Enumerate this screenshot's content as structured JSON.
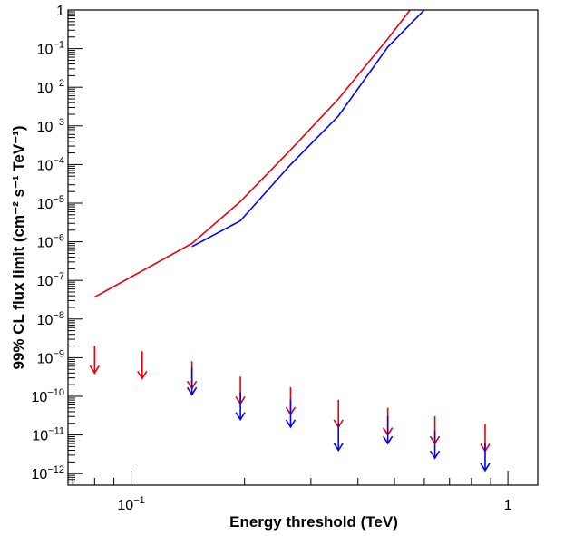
{
  "chart_data": {
    "type": "line",
    "xlabel": "Energy threshold (TeV)",
    "ylabel": "99% CL flux limit (cm⁻² s⁻¹ TeV⁻¹)",
    "x_scale": "log",
    "y_scale": "log",
    "xlim": [
      0.068,
      1.2
    ],
    "ylim": [
      5e-13,
      1
    ],
    "x_tick_labels": [
      {
        "value": 0.1,
        "base": "10",
        "exp": "−1"
      },
      {
        "value": 1,
        "base": "1",
        "exp": ""
      }
    ],
    "y_tick_labels": [
      {
        "value": 1,
        "base": "1",
        "exp": ""
      },
      {
        "value": 0.1,
        "base": "10",
        "exp": "−1"
      },
      {
        "value": 0.01,
        "base": "10",
        "exp": "−2"
      },
      {
        "value": 0.001,
        "base": "10",
        "exp": "−3"
      },
      {
        "value": 0.0001,
        "base": "10",
        "exp": "−4"
      },
      {
        "value": 1e-05,
        "base": "10",
        "exp": "−5"
      },
      {
        "value": 1e-06,
        "base": "10",
        "exp": "−6"
      },
      {
        "value": 1e-07,
        "base": "10",
        "exp": "−7"
      },
      {
        "value": 1e-08,
        "base": "10",
        "exp": "−8"
      },
      {
        "value": 1e-09,
        "base": "10",
        "exp": "−9"
      },
      {
        "value": 1e-10,
        "base": "10",
        "exp": "−10"
      },
      {
        "value": 1e-11,
        "base": "10",
        "exp": "−11"
      },
      {
        "value": 1e-12,
        "base": "10",
        "exp": "−12"
      }
    ],
    "series": [
      {
        "kind": "line",
        "color": "#e8000b",
        "x": [
          0.08,
          0.145,
          0.195,
          0.265,
          0.355,
          0.48,
          0.55
        ],
        "y": [
          3.7e-08,
          9e-07,
          1.1e-05,
          0.00024,
          0.005,
          0.18,
          1
        ]
      },
      {
        "kind": "line",
        "color": "#0000ff",
        "x": [
          0.145,
          0.195,
          0.265,
          0.355,
          0.48,
          0.6
        ],
        "y": [
          7.5e-07,
          3.5e-06,
          0.0001,
          0.0018,
          0.11,
          1
        ]
      },
      {
        "kind": "upper-limit",
        "color": "#e8000b",
        "x": [
          0.08,
          0.107,
          0.145,
          0.195,
          0.265,
          0.355,
          0.48,
          0.64,
          0.87
        ],
        "y": [
          4e-10,
          2.9e-10,
          1.6e-10,
          6.4e-11,
          3.4e-11,
          1.6e-11,
          1e-11,
          6e-12,
          3.8e-12
        ]
      },
      {
        "kind": "upper-limit",
        "color": "#0000ff",
        "x": [
          0.145,
          0.195,
          0.265,
          0.355,
          0.48,
          0.64,
          0.87
        ],
        "y": [
          1.1e-10,
          2.5e-11,
          1.6e-11,
          4e-12,
          6e-12,
          2.5e-12,
          1.2e-12
        ]
      }
    ]
  }
}
